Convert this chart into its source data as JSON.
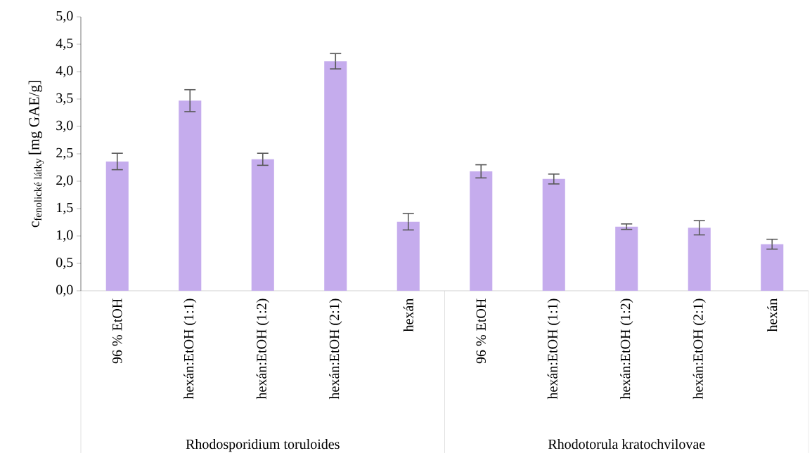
{
  "chart_data": {
    "type": "bar",
    "ylabel": "\\text{c}_{\\text{fenolické látky}}\\,\\text{[mg GAE/g]}",
    "categories": [
      "96 % EtOH",
      "hexán:EtOH (1:1)",
      "hexán:EtOH (1:2)",
      "hexán:EtOH (2:1)",
      "hexán",
      "96 % EtOH",
      "hexán:EtOH (1:1)",
      "hexán:EtOH (1:2)",
      "hexán:EtOH (2:1)",
      "hexán"
    ],
    "values": [
      2.36,
      3.47,
      2.4,
      4.19,
      1.26,
      2.18,
      2.04,
      1.17,
      1.15,
      0.85
    ],
    "errors": [
      0.15,
      0.2,
      0.11,
      0.14,
      0.15,
      0.12,
      0.09,
      0.05,
      0.13,
      0.09
    ],
    "color": "#c5aced",
    "ylim": [
      0,
      5
    ],
    "yticks": [
      {
        "value": 0,
        "label": "0,0"
      },
      {
        "value": 0.5,
        "label": "0,5"
      },
      {
        "value": 1,
        "label": "1,0"
      },
      {
        "value": 1.5,
        "label": "1,5"
      },
      {
        "value": 2,
        "label": "2,0"
      },
      {
        "value": 2.5,
        "label": "2,5"
      },
      {
        "value": 3,
        "label": "3,0"
      },
      {
        "value": 3.5,
        "label": "3,5"
      },
      {
        "value": 4,
        "label": "4,0"
      },
      {
        "value": 4.5,
        "label": "4,5"
      },
      {
        "value": 5,
        "label": "5,0"
      }
    ],
    "annotations": [
      "Rhodosporidium toruloides",
      "Rhodotorula kratochvilovae"
    ],
    "grid": false
  }
}
